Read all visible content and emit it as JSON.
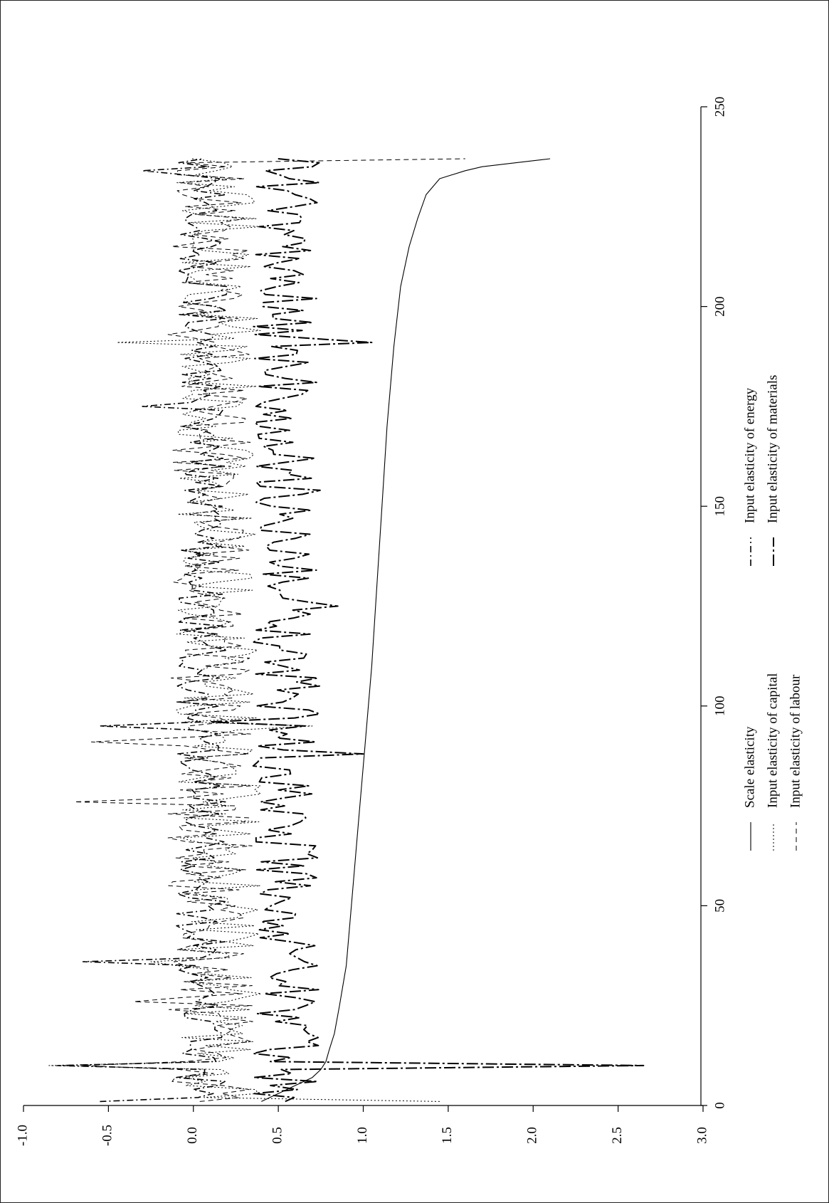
{
  "chart_data": {
    "type": "line",
    "orientation": "rotated-90-ccw",
    "x_axis": {
      "ticks": [
        "0",
        "50",
        "100",
        "150",
        "200",
        "250"
      ],
      "range": [
        0,
        250
      ]
    },
    "y_axis": {
      "ticks": [
        "-1.0",
        "-0.5",
        "0.0",
        "0.5",
        "1.0",
        "1.5",
        "2.0",
        "2.5",
        "3.0"
      ],
      "range": [
        -1.0,
        3.0
      ]
    },
    "grid": false,
    "legend": {
      "placement": "bottom",
      "entries": [
        "Scale elasticity",
        "Input elasticity of capital",
        "Input elasticity of labour",
        "Input elasticity of energy",
        "Input elasticity of materials"
      ]
    },
    "series": [
      {
        "name": "Scale elasticity",
        "dash": "solid",
        "width": 1.1,
        "x": [
          1,
          3,
          5,
          7,
          9,
          11,
          14,
          18,
          25,
          35,
          50,
          70,
          90,
          110,
          130,
          150,
          170,
          190,
          205,
          215,
          222,
          228,
          232,
          234,
          235,
          236,
          237
        ],
        "y": [
          0.4,
          0.5,
          0.6,
          0.7,
          0.75,
          0.78,
          0.8,
          0.83,
          0.86,
          0.9,
          0.93,
          0.97,
          1.01,
          1.05,
          1.08,
          1.11,
          1.14,
          1.18,
          1.22,
          1.27,
          1.32,
          1.37,
          1.45,
          1.6,
          1.7,
          1.9,
          2.1
        ]
      },
      {
        "name": "Input elasticity of capital",
        "dash": "dot",
        "width": 1.0,
        "mean": 0.15,
        "amp": 0.25,
        "spikes": [
          [
            1,
            1.45
          ],
          [
            10,
            -0.85
          ],
          [
            36,
            -0.25
          ],
          [
            50,
            0.2
          ],
          [
            95,
            0.7
          ],
          [
            191,
            -0.45
          ],
          [
            220,
            0.4
          ]
        ],
        "range": [
          1,
          237
        ]
      },
      {
        "name": "Input elasticity of labour",
        "dash": "dash",
        "width": 1.0,
        "mean": 0.1,
        "amp": 0.25,
        "spikes": [
          [
            10,
            -0.65
          ],
          [
            26,
            -0.35
          ],
          [
            76,
            -0.7
          ],
          [
            91,
            -0.6
          ],
          [
            237,
            1.6
          ]
        ],
        "range": [
          1,
          237
        ]
      },
      {
        "name": "Input elasticity of energy",
        "dash": "dashdot",
        "width": 1.6,
        "mean": 0.05,
        "amp": 0.15,
        "spikes": [
          [
            1,
            -0.55
          ],
          [
            10,
            -0.8
          ],
          [
            36,
            -0.65
          ],
          [
            95,
            -0.55
          ],
          [
            175,
            -0.3
          ],
          [
            234,
            -0.3
          ]
        ],
        "range": [
          1,
          237
        ]
      },
      {
        "name": "Input elasticity of materials",
        "dash": "longdashdot",
        "width": 2.0,
        "mean": 0.55,
        "amp": 0.2,
        "spikes": [
          [
            10,
            2.65
          ],
          [
            88,
            1.0
          ],
          [
            96,
            0.1
          ],
          [
            125,
            0.85
          ],
          [
            191,
            1.05
          ],
          [
            235,
            0.7
          ]
        ],
        "range": [
          1,
          237
        ]
      }
    ]
  }
}
